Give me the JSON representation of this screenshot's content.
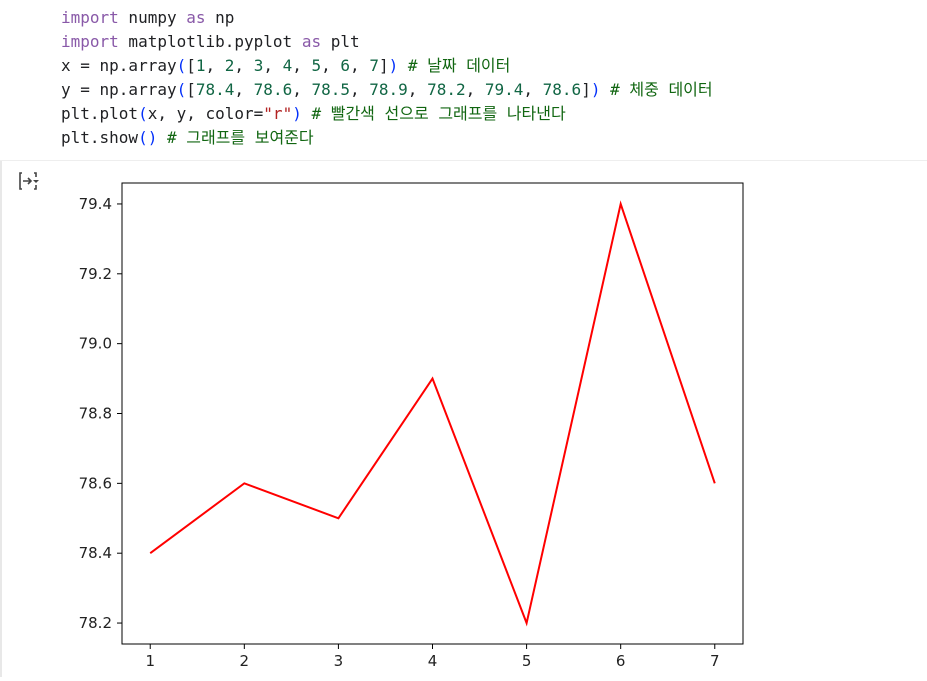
{
  "code": {
    "lines": [
      [
        {
          "t": "import",
          "c": "kw"
        },
        {
          "t": " numpy ",
          "c": ""
        },
        {
          "t": "as",
          "c": "kw"
        },
        {
          "t": " np",
          "c": ""
        }
      ],
      [
        {
          "t": "import",
          "c": "kw"
        },
        {
          "t": " matplotlib.pyplot ",
          "c": ""
        },
        {
          "t": "as",
          "c": "kw"
        },
        {
          "t": " plt",
          "c": ""
        }
      ],
      [
        {
          "t": "x = np.array",
          "c": ""
        },
        {
          "t": "(",
          "c": "paren"
        },
        {
          "t": "[",
          "c": ""
        },
        {
          "t": "1",
          "c": "num"
        },
        {
          "t": ", ",
          "c": ""
        },
        {
          "t": "2",
          "c": "num"
        },
        {
          "t": ", ",
          "c": ""
        },
        {
          "t": "3",
          "c": "num"
        },
        {
          "t": ", ",
          "c": ""
        },
        {
          "t": "4",
          "c": "num"
        },
        {
          "t": ", ",
          "c": ""
        },
        {
          "t": "5",
          "c": "num"
        },
        {
          "t": ", ",
          "c": ""
        },
        {
          "t": "6",
          "c": "num"
        },
        {
          "t": ", ",
          "c": ""
        },
        {
          "t": "7",
          "c": "num"
        },
        {
          "t": "]",
          "c": ""
        },
        {
          "t": ")",
          "c": "paren"
        },
        {
          "t": " # 날짜 데이터",
          "c": "com"
        }
      ],
      [
        {
          "t": "y = np.array",
          "c": ""
        },
        {
          "t": "(",
          "c": "paren"
        },
        {
          "t": "[",
          "c": ""
        },
        {
          "t": "78.4",
          "c": "num"
        },
        {
          "t": ", ",
          "c": ""
        },
        {
          "t": "78.6",
          "c": "num"
        },
        {
          "t": ", ",
          "c": ""
        },
        {
          "t": "78.5",
          "c": "num"
        },
        {
          "t": ", ",
          "c": ""
        },
        {
          "t": "78.9",
          "c": "num"
        },
        {
          "t": ", ",
          "c": ""
        },
        {
          "t": "78.2",
          "c": "num"
        },
        {
          "t": ", ",
          "c": ""
        },
        {
          "t": "79.4",
          "c": "num"
        },
        {
          "t": ", ",
          "c": ""
        },
        {
          "t": "78.6",
          "c": "num"
        },
        {
          "t": "]",
          "c": ""
        },
        {
          "t": ")",
          "c": "paren"
        },
        {
          "t": " # 체중 데이터",
          "c": "com"
        }
      ],
      [
        {
          "t": "plt.plot",
          "c": ""
        },
        {
          "t": "(",
          "c": "paren"
        },
        {
          "t": "x, y, color=",
          "c": ""
        },
        {
          "t": "\"r\"",
          "c": "str"
        },
        {
          "t": ")",
          "c": "paren"
        },
        {
          "t": " # 빨간색 선으로 그래프를 나타낸다",
          "c": "com"
        }
      ],
      [
        {
          "t": "plt.show",
          "c": ""
        },
        {
          "t": "()",
          "c": "paren"
        },
        {
          "t": " # 그래프를 보여준다",
          "c": "com"
        }
      ]
    ]
  },
  "output": {
    "icon": "output-toggle-icon"
  },
  "colors": {
    "line": "#ff0000",
    "axes": "#000000"
  },
  "chart_data": {
    "type": "line",
    "x": [
      1,
      2,
      3,
      4,
      5,
      6,
      7
    ],
    "series": [
      {
        "values": [
          78.4,
          78.6,
          78.5,
          78.9,
          78.2,
          79.4,
          78.6
        ],
        "color": "#ff0000"
      }
    ],
    "xticks": [
      "1",
      "2",
      "3",
      "4",
      "5",
      "6",
      "7"
    ],
    "yticks": [
      "78.2",
      "78.4",
      "78.6",
      "78.8",
      "79.0",
      "79.2",
      "79.4"
    ],
    "xlim": [
      0.7,
      7.3
    ],
    "ylim": [
      78.14,
      79.46
    ],
    "title": "",
    "xlabel": "",
    "ylabel": "",
    "grid": false
  }
}
